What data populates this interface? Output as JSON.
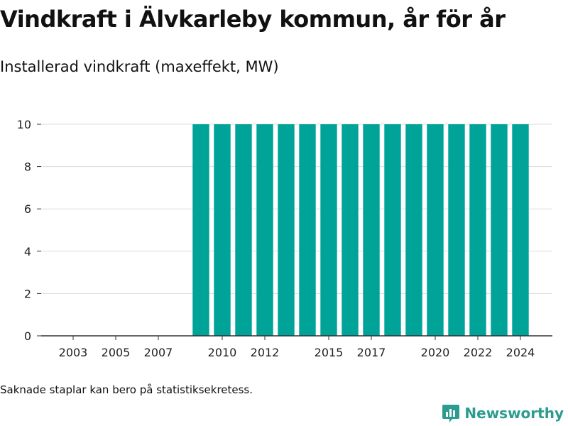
{
  "title": "Vindkraft i Älvkarleby kommun, år för år",
  "subtitle": "Installerad vindkraft (maxeffekt, MW)",
  "footnote": "Saknade staplar kan bero på statistiksekretess.",
  "brand": {
    "name": "Newsworthy",
    "icon": "newsworthy-logo-icon",
    "color": "#2b9c8f"
  },
  "chart_data": {
    "type": "bar",
    "title": "Vindkraft i Älvkarleby kommun, år för år",
    "subtitle": "Installerad vindkraft (maxeffekt, MW)",
    "xlabel": "",
    "ylabel": "",
    "categories": [
      "2009",
      "2010",
      "2011",
      "2012",
      "2013",
      "2014",
      "2015",
      "2016",
      "2017",
      "2018",
      "2019",
      "2020",
      "2021",
      "2022",
      "2023",
      "2024"
    ],
    "values": [
      10,
      10,
      10,
      10,
      10,
      10,
      10,
      10,
      10,
      10,
      10,
      10,
      10,
      10,
      10,
      10
    ],
    "xlim": [
      2001.5,
      2025.5
    ],
    "ylim": [
      0,
      10
    ],
    "y_ticks": [
      0,
      2,
      4,
      6,
      8,
      10
    ],
    "x_tick_labels": [
      "2003",
      "2005",
      "2007",
      "2010",
      "2012",
      "2015",
      "2017",
      "2020",
      "2022",
      "2024"
    ],
    "bar_color": "#00a398",
    "grid": true,
    "legend": "none"
  }
}
